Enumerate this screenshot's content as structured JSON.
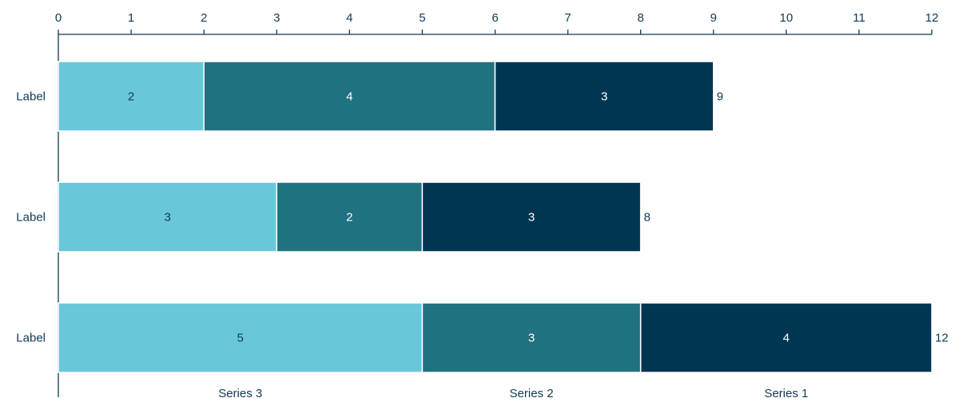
{
  "chart_data": {
    "type": "bar",
    "orientation": "horizontal",
    "stacked": true,
    "categories": [
      "Label",
      "Label",
      "Label"
    ],
    "series": [
      {
        "name": "Series 3",
        "color": "#68c8da",
        "text_color": "#0f3a55",
        "values": [
          2,
          3,
          5
        ]
      },
      {
        "name": "Series 2",
        "color": "#217280",
        "text_color": "#ffffff",
        "values": [
          4,
          2,
          3
        ]
      },
      {
        "name": "Series 1",
        "color": "#003654",
        "text_color": "#ffffff",
        "values": [
          3,
          3,
          4
        ]
      }
    ],
    "totals": [
      9,
      8,
      12
    ],
    "xlim": [
      0,
      12
    ],
    "ticks": [
      "0",
      "1",
      "2",
      "3",
      "4",
      "5",
      "6",
      "7",
      "8",
      "9",
      "10",
      "11",
      "12"
    ],
    "axis_position": "top",
    "grid": false,
    "legend": "bottom, under segments of last bar",
    "axis_color": "#0f3a55"
  }
}
